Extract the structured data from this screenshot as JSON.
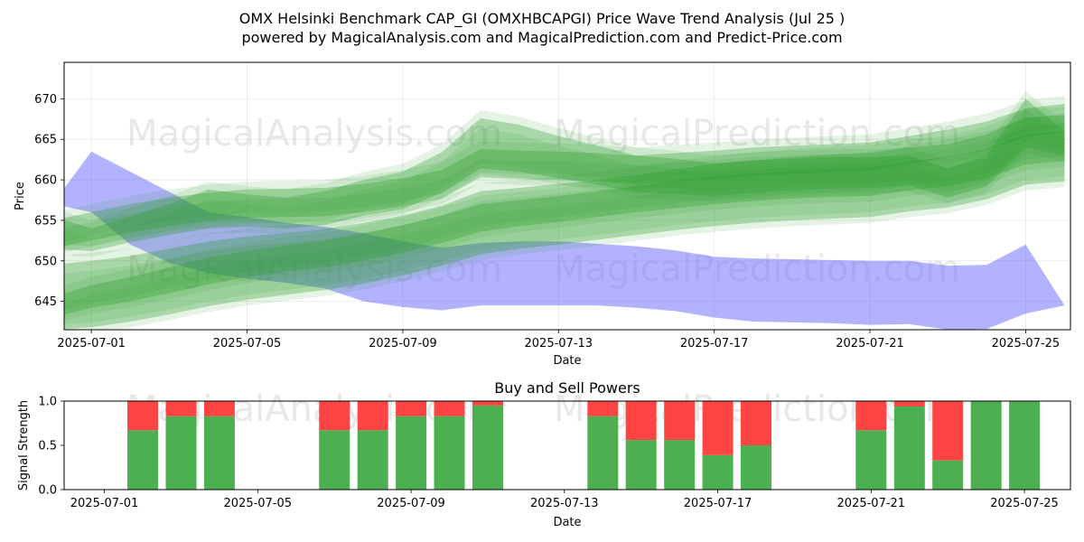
{
  "title_line1": "OMX Helsinki Benchmark CAP_GI (OMXHBCAPGI) Price Wave Trend Analysis (Jul 25 )",
  "title_line2": "powered by MagicalAnalysis.com and MagicalPrediction.com and Predict-Price.com",
  "watermarks": [
    "MagicalAnalysis.com",
    "MagicalPrediction.com"
  ],
  "colors": {
    "green_band": "#2ca02c",
    "blue_band": "#6666ff",
    "buy": "#4caf50",
    "sell": "#ff4444"
  },
  "chart_data": [
    {
      "type": "area",
      "xlabel": "Date",
      "ylabel": "Price",
      "xlim": [
        "2025-06-30",
        "2025-07-26"
      ],
      "ylim": [
        641.5,
        674.5
      ],
      "x_ticks": [
        "2025-07-01",
        "2025-07-05",
        "2025-07-09",
        "2025-07-13",
        "2025-07-17",
        "2025-07-21",
        "2025-07-25"
      ],
      "y_ticks": [
        645,
        650,
        655,
        660,
        665,
        670
      ],
      "grid": true,
      "series": [
        {
          "color": "#6666ff",
          "x": [
            "2025-06-30",
            "2025-07-01",
            "2025-07-02",
            "2025-07-03",
            "2025-07-04",
            "2025-07-05",
            "2025-07-06",
            "2025-07-07",
            "2025-07-08",
            "2025-07-09",
            "2025-07-10",
            "2025-07-11",
            "2025-07-12",
            "2025-07-13",
            "2025-07-14",
            "2025-07-15",
            "2025-07-16",
            "2025-07-17",
            "2025-07-18",
            "2025-07-19",
            "2025-07-20",
            "2025-07-21",
            "2025-07-22",
            "2025-07-23",
            "2025-07-24",
            "2025-07-25",
            "2025-07-26"
          ],
          "upper": [
            657,
            663.5,
            661,
            658.5,
            656,
            655.4,
            654.7,
            654.2,
            653.4,
            652.4,
            651.6,
            652.2,
            652.4,
            652.4,
            652.1,
            651.8,
            651.3,
            650.5,
            650.3,
            650.2,
            650.1,
            650.0,
            650.0,
            649.4,
            649.5,
            652.0,
            644.5
          ],
          "lower": [
            657,
            656.0,
            652,
            649.8,
            648.5,
            647.8,
            647.3,
            646.6,
            645.0,
            644.3,
            643.9,
            644.5,
            644.5,
            644.5,
            644.5,
            644.2,
            643.8,
            643.0,
            642.5,
            642.4,
            642.3,
            642.1,
            642.2,
            641.5,
            641.6,
            643.5,
            644.5
          ]
        },
        {
          "color": "#2ca02c",
          "x": [
            "2025-06-30",
            "2025-07-01",
            "2025-07-02",
            "2025-07-03",
            "2025-07-04",
            "2025-07-05",
            "2025-07-06",
            "2025-07-07",
            "2025-07-08",
            "2025-07-09",
            "2025-07-10",
            "2025-07-11",
            "2025-07-12",
            "2025-07-13",
            "2025-07-14",
            "2025-07-15",
            "2025-07-16",
            "2025-07-17",
            "2025-07-18",
            "2025-07-19",
            "2025-07-20",
            "2025-07-21",
            "2025-07-22",
            "2025-07-23",
            "2025-07-24",
            "2025-07-25",
            "2025-07-26"
          ],
          "upper": [
            655,
            656,
            657,
            657.8,
            658.4,
            658.8,
            658.9,
            659.0,
            659.5,
            660.2,
            661.2,
            663.8,
            663.6,
            663.5,
            663.3,
            663.0,
            663.3,
            663.6,
            664.0,
            664.2,
            664.4,
            664.6,
            665.4,
            666.2,
            667.2,
            668.8,
            669.4
          ]
        },
        {
          "color": "#2ca02c",
          "x": [
            "2025-06-30",
            "2025-07-01",
            "2025-07-02",
            "2025-07-03",
            "2025-07-04",
            "2025-07-05",
            "2025-07-06",
            "2025-07-07",
            "2025-07-08",
            "2025-07-09",
            "2025-07-10",
            "2025-07-11",
            "2025-07-12",
            "2025-07-13",
            "2025-07-14",
            "2025-07-15",
            "2025-07-16",
            "2025-07-17",
            "2025-07-18",
            "2025-07-19",
            "2025-07-20",
            "2025-07-21",
            "2025-07-22",
            "2025-07-23",
            "2025-07-24",
            "2025-07-25",
            "2025-07-26"
          ],
          "upper": [
            649.5,
            650,
            650.6,
            651.5,
            652.4,
            653.0,
            653.4,
            653.9,
            654.7,
            655.6,
            656.8,
            658.6,
            659.0,
            659.5,
            660.0,
            660.6,
            661.3,
            662.0,
            662.4,
            662.8,
            663.1,
            663.3,
            664.0,
            664.4,
            665.6,
            667.7,
            668.0
          ],
          "lower": [
            643,
            644.2,
            645.0,
            646.0,
            647.1,
            648.0,
            648.7,
            649.2,
            650.0,
            651.0,
            652.2,
            653.6,
            654.3,
            654.8,
            655.4,
            656.0,
            656.5,
            657.0,
            657.4,
            657.7,
            657.9,
            658.0,
            658.7,
            659.2,
            660.2,
            661.9,
            662.3
          ]
        },
        {
          "color": "#2ca02c",
          "x": [
            "2025-06-30",
            "2025-07-01",
            "2025-07-02",
            "2025-07-03",
            "2025-07-04",
            "2025-07-05",
            "2025-07-06",
            "2025-07-07",
            "2025-07-08",
            "2025-07-09",
            "2025-07-10",
            "2025-07-11",
            "2025-07-12",
            "2025-07-13",
            "2025-07-14",
            "2025-07-15",
            "2025-07-16",
            "2025-07-17",
            "2025-07-18",
            "2025-07-19",
            "2025-07-20",
            "2025-07-21",
            "2025-07-22",
            "2025-07-23",
            "2025-07-24",
            "2025-07-25",
            "2025-07-26"
          ],
          "upper": [
            645.5,
            647.0,
            648.0,
            649.2,
            650.4,
            651.2,
            651.9,
            652.5,
            653.4,
            654.4,
            655.6,
            657.0,
            657.5,
            658.0,
            658.6,
            659.2,
            659.9,
            660.4,
            660.8,
            661.1,
            661.4,
            661.6,
            662.3,
            662.8,
            663.8,
            665.6,
            666.0
          ],
          "lower": [
            641.5,
            641.8,
            642.5,
            643.4,
            644.4,
            645.2,
            645.8,
            646.4,
            647.2,
            648.2,
            649.4,
            650.8,
            651.5,
            652.0,
            652.6,
            653.2,
            653.8,
            654.3,
            654.7,
            655.0,
            655.2,
            655.4,
            656.1,
            656.6,
            657.6,
            659.4,
            659.8
          ]
        },
        {
          "color": "#2ca02c",
          "x": [
            "2025-06-30",
            "2025-07-01",
            "2025-07-02",
            "2025-07-03",
            "2025-07-04",
            "2025-07-05",
            "2025-07-06",
            "2025-07-07",
            "2025-07-08",
            "2025-07-09",
            "2025-07-10",
            "2025-07-11",
            "2025-07-12",
            "2025-07-13",
            "2025-07-14",
            "2025-07-15",
            "2025-07-16",
            "2025-07-17",
            "2025-07-18",
            "2025-07-19",
            "2025-07-20",
            "2025-07-21",
            "2025-07-22",
            "2025-07-23",
            "2025-07-24",
            "2025-07-25",
            "2025-07-26"
          ],
          "upper": [
            655.5,
            654.0,
            655.5,
            657.0,
            658.8,
            658.2,
            657.8,
            658.6,
            660.0,
            661.0,
            663.4,
            667.6,
            666.8,
            665.4,
            664.2,
            663.0,
            662.6,
            662.0,
            662.4,
            662.6,
            662.8,
            662.8,
            663.0,
            661.4,
            663.0,
            670.0,
            666.0
          ],
          "lower": [
            651.5,
            651.2,
            652.3,
            653.2,
            654.0,
            654.2,
            654.0,
            654.4,
            655.6,
            656.4,
            658.4,
            661.4,
            661.0,
            660.2,
            659.4,
            658.4,
            658.3,
            658.0,
            658.4,
            658.7,
            658.9,
            659.0,
            659.3,
            657.8,
            659.2,
            664.0,
            663.0
          ]
        }
      ]
    },
    {
      "type": "bar",
      "title": "Buy and Sell Powers",
      "xlabel": "Date",
      "ylabel": "Signal Strength",
      "xlim": [
        "2025-06-30",
        "2025-07-26"
      ],
      "ylim": [
        0,
        1.0
      ],
      "x_ticks": [
        "2025-07-01",
        "2025-07-05",
        "2025-07-09",
        "2025-07-13",
        "2025-07-17",
        "2025-07-21",
        "2025-07-25"
      ],
      "y_ticks": [
        "0.0",
        "0.5",
        "1.0"
      ],
      "categories": [
        "2025-07-02",
        "2025-07-03",
        "2025-07-04",
        "2025-07-07",
        "2025-07-08",
        "2025-07-09",
        "2025-07-10",
        "2025-07-11",
        "2025-07-14",
        "2025-07-15",
        "2025-07-16",
        "2025-07-17",
        "2025-07-18",
        "2025-07-21",
        "2025-07-22",
        "2025-07-23",
        "2025-07-24",
        "2025-07-25"
      ],
      "series": [
        {
          "color": "#4caf50",
          "values": [
            0.67,
            0.83,
            0.83,
            0.67,
            0.67,
            0.83,
            0.83,
            0.95,
            0.83,
            0.56,
            0.56,
            0.39,
            0.5,
            0.67,
            0.94,
            0.33,
            1.0,
            1.0
          ]
        },
        {
          "color": "#ff4444",
          "values": [
            0.33,
            0.17,
            0.17,
            0.33,
            0.33,
            0.17,
            0.17,
            0.05,
            0.17,
            0.44,
            0.44,
            0.61,
            0.5,
            0.33,
            0.06,
            0.67,
            0.0,
            0.0
          ]
        }
      ]
    }
  ]
}
